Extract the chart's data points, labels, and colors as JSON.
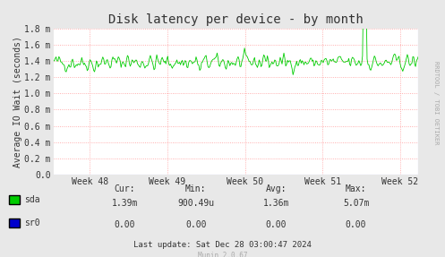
{
  "title": "Disk latency per device - by month",
  "ylabel": "Average IO Wait (seconds)",
  "background_color": "#e8e8e8",
  "plot_bg_color": "#ffffff",
  "grid_color": "#ff9999",
  "line_color_sda": "#00cc00",
  "line_color_sr0": "#0000cc",
  "ylim": [
    0.0,
    0.0018
  ],
  "yticks": [
    0.0,
    0.0002,
    0.0004,
    0.0006,
    0.0008,
    0.001,
    0.0012,
    0.0014,
    0.0016,
    0.0018
  ],
  "ytick_labels": [
    "0.0",
    "0.2 m",
    "0.4 m",
    "0.6 m",
    "0.8 m",
    "1.0 m",
    "1.2 m",
    "1.4 m",
    "1.6 m",
    "1.8 m"
  ],
  "week_labels": [
    "Week 48",
    "Week 49",
    "Week 50",
    "Week 51",
    "Week 52"
  ],
  "legend_entries": [
    {
      "label": "sda",
      "color": "#00cc00"
    },
    {
      "label": "sr0",
      "color": "#0000cc"
    }
  ],
  "footer_text": "Last update: Sat Dec 28 03:00:47 2024",
  "munin_text": "Munin 2.0.67",
  "table_headers": [
    "Cur:",
    "Min:",
    "Avg:",
    "Max:"
  ],
  "table_sda": [
    "1.39m",
    "900.49u",
    "1.36m",
    "5.07m"
  ],
  "table_sr0": [
    "0.00",
    "0.00",
    "0.00",
    "0.00"
  ],
  "rrdtool_label": "RRDTOOL / TOBI OETIKER",
  "num_points": 400,
  "base_level": 0.00138,
  "noise_scale": 8e-05,
  "spike_positions": [
    20,
    45,
    80,
    110,
    160,
    230,
    280,
    340,
    360
  ],
  "spike_values": [
    0.00145,
    0.00125,
    0.00148,
    0.00125,
    0.00122,
    0.0015,
    0.00142,
    0.00507,
    0.00135
  ]
}
